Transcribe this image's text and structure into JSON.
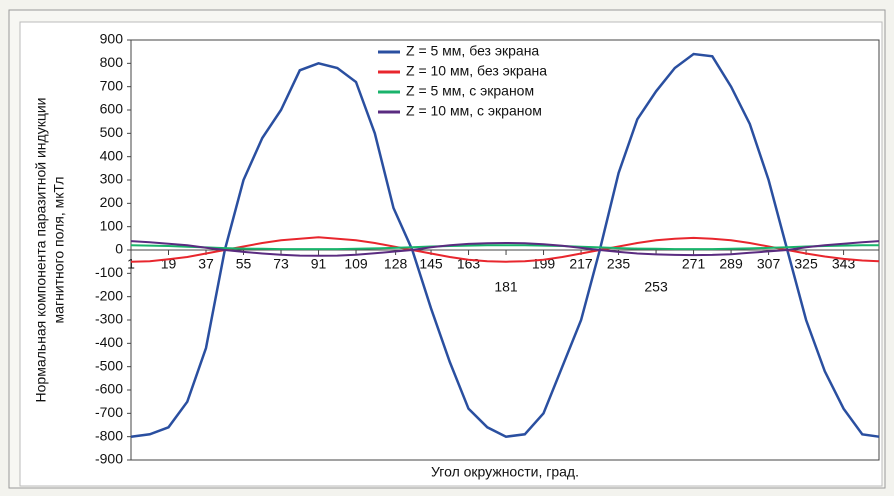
{
  "chart_data": {
    "type": "line",
    "y_label_lines": [
      "Нормальная компонента паразитной индукции",
      "магнитного поля, мкТл"
    ],
    "x_label": "Угол окружности, град.",
    "x": [
      1,
      10,
      19,
      28,
      37,
      46,
      55,
      64,
      73,
      82,
      91,
      100,
      109,
      118,
      127,
      136,
      145,
      154,
      163,
      172,
      181,
      190,
      199,
      208,
      217,
      226,
      235,
      244,
      253,
      262,
      271,
      280,
      289,
      298,
      307,
      316,
      325,
      334,
      343,
      352,
      360
    ],
    "series": [
      {
        "name": "Z = 5 мм, без экрана",
        "color": "#2a4fa0",
        "values": [
          -800,
          -790,
          -760,
          -650,
          -420,
          0,
          300,
          480,
          600,
          770,
          800,
          780,
          720,
          500,
          180,
          0,
          -250,
          -480,
          -680,
          -760,
          -800,
          -790,
          -700,
          -500,
          -300,
          0,
          330,
          560,
          680,
          780,
          840,
          830,
          700,
          540,
          300,
          0,
          -300,
          -520,
          -680,
          -790,
          -800
        ]
      },
      {
        "name": "Z = 10 мм, без экрана",
        "color": "#e8262d",
        "values": [
          -50,
          -48,
          -40,
          -30,
          -15,
          0,
          15,
          30,
          42,
          48,
          55,
          48,
          42,
          30,
          15,
          0,
          -15,
          -30,
          -42,
          -48,
          -50,
          -48,
          -42,
          -30,
          -15,
          0,
          15,
          30,
          42,
          48,
          52,
          48,
          42,
          30,
          15,
          0,
          -15,
          -28,
          -38,
          -45,
          -48
        ]
      },
      {
        "name": "Z = 5 мм, с экраном",
        "color": "#19b36b",
        "values": [
          20,
          19,
          17,
          14,
          11,
          8,
          6,
          5,
          4,
          4,
          4,
          4,
          5,
          7,
          9,
          12,
          15,
          17,
          19,
          20,
          20,
          20,
          19,
          17,
          14,
          11,
          8,
          6,
          5,
          4,
          4,
          4,
          5,
          7,
          9,
          12,
          15,
          17,
          19,
          20,
          20
        ]
      },
      {
        "name": "Z = 10 мм, с экраном",
        "color": "#5a2b80",
        "values": [
          38,
          33,
          27,
          20,
          10,
          0,
          -8,
          -15,
          -20,
          -24,
          -25,
          -24,
          -20,
          -14,
          -7,
          0,
          12,
          20,
          26,
          29,
          30,
          29,
          25,
          18,
          9,
          0,
          -8,
          -15,
          -19,
          -21,
          -22,
          -21,
          -18,
          -12,
          -6,
          0,
          12,
          20,
          27,
          33,
          38
        ]
      }
    ],
    "xlim": [
      1,
      360
    ],
    "xticks": [
      1,
      19,
      37,
      55,
      73,
      91,
      109,
      128,
      145,
      163,
      181,
      199,
      217,
      235,
      253,
      271,
      289,
      307,
      325,
      343
    ],
    "ylim": [
      -900,
      900
    ],
    "yticks": [
      -900,
      -800,
      -700,
      -600,
      -500,
      -400,
      -300,
      -200,
      -100,
      0,
      100,
      200,
      300,
      400,
      500,
      600,
      700,
      800,
      900
    ]
  }
}
